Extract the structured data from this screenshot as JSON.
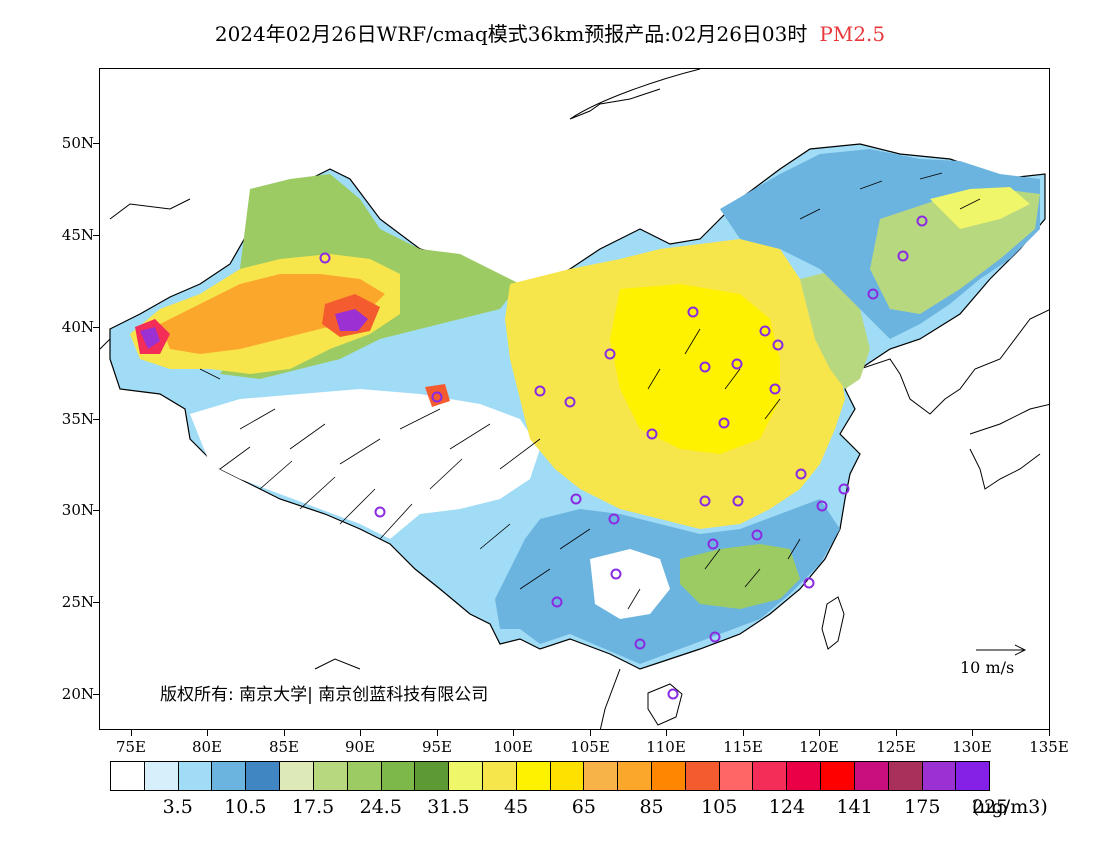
{
  "header": {
    "title": "2024年02月26日WRF/cmaq模式36km预报产品:02月26日03时",
    "variable": "PM2.5"
  },
  "axes": {
    "latitude_labels": [
      "50N",
      "45N",
      "40N",
      "35N",
      "30N",
      "25N",
      "20N"
    ],
    "longitude_labels": [
      "75E",
      "80E",
      "85E",
      "90E",
      "95E",
      "100E",
      "105E",
      "110E",
      "115E",
      "120E",
      "125E",
      "130E",
      "135E"
    ]
  },
  "colorbar": {
    "colors": [
      "#ffffff",
      "#d7effa",
      "#a0dcf5",
      "#6cb4e0",
      "#3f86c3",
      "#dde9b7",
      "#b8d880",
      "#9ccb64",
      "#7db84a",
      "#5e9a33",
      "#eff66a",
      "#f7e54c",
      "#fff200",
      "#ffe100",
      "#f7b347",
      "#fba72c",
      "#ff8600",
      "#f45b2e",
      "#ff6666",
      "#f42d58",
      "#ea0047",
      "#ff0000",
      "#c90f7e",
      "#a8305a",
      "#9b31d3",
      "#8520e6"
    ],
    "tick_labels": [
      "3.5",
      "10.5",
      "17.5",
      "24.5",
      "31.5",
      "45",
      "65",
      "85",
      "105",
      "124",
      "141",
      "175",
      "225"
    ],
    "unit": "(ug/m3)"
  },
  "wind_scale": {
    "label": "10 m/s"
  },
  "copyright": {
    "text": "版权所有: 南京大学| 南京创蓝科技有限公司"
  }
}
